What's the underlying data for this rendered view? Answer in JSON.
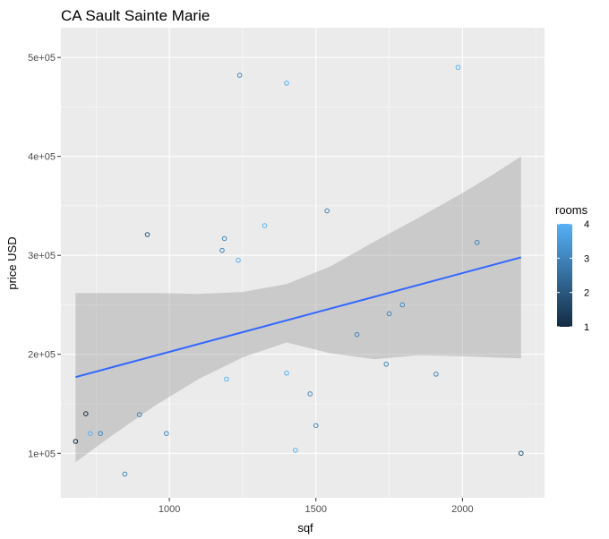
{
  "chart_data": {
    "type": "scatter",
    "title": "CA Sault Sainte Marie",
    "xlabel": "sqf",
    "ylabel": "price USD",
    "xlim": [
      630,
      2280
    ],
    "ylim": [
      55000,
      530000
    ],
    "x_ticks": [
      1000,
      1500,
      2000
    ],
    "x_tick_labels": [
      "1000",
      "1500",
      "2000"
    ],
    "y_ticks": [
      100000,
      200000,
      300000,
      400000,
      500000
    ],
    "y_tick_labels": [
      "1e+05",
      "2e+05",
      "3e+05",
      "4e+05",
      "5e+05"
    ],
    "grid": true,
    "legend": {
      "title": "rooms",
      "placement": "right",
      "min": 1,
      "max": 4,
      "labels": [
        "4",
        "3",
        "2",
        "1"
      ],
      "values": [
        4,
        3,
        2,
        1
      ],
      "color_low": "#132B43",
      "color_high": "#56B1F7"
    },
    "points": [
      {
        "x": 680,
        "y": 112000,
        "rooms": 1
      },
      {
        "x": 715,
        "y": 140000,
        "rooms": 1
      },
      {
        "x": 730,
        "y": 120000,
        "rooms": 4
      },
      {
        "x": 765,
        "y": 120000,
        "rooms": 3
      },
      {
        "x": 848,
        "y": 79000,
        "rooms": 3
      },
      {
        "x": 898,
        "y": 139000,
        "rooms": 3
      },
      {
        "x": 925,
        "y": 321000,
        "rooms": 2
      },
      {
        "x": 990,
        "y": 120000,
        "rooms": 3
      },
      {
        "x": 1180,
        "y": 305000,
        "rooms": 3
      },
      {
        "x": 1188,
        "y": 317000,
        "rooms": 3
      },
      {
        "x": 1195,
        "y": 175000,
        "rooms": 4
      },
      {
        "x": 1235,
        "y": 295000,
        "rooms": 4
      },
      {
        "x": 1240,
        "y": 482000,
        "rooms": 3
      },
      {
        "x": 1325,
        "y": 330000,
        "rooms": 4
      },
      {
        "x": 1400,
        "y": 474000,
        "rooms": 4
      },
      {
        "x": 1400,
        "y": 181000,
        "rooms": 4
      },
      {
        "x": 1430,
        "y": 103000,
        "rooms": 4
      },
      {
        "x": 1480,
        "y": 160000,
        "rooms": 3
      },
      {
        "x": 1500,
        "y": 128000,
        "rooms": 3
      },
      {
        "x": 1538,
        "y": 345000,
        "rooms": 3
      },
      {
        "x": 1640,
        "y": 220000,
        "rooms": 3
      },
      {
        "x": 1740,
        "y": 190000,
        "rooms": 3
      },
      {
        "x": 1750,
        "y": 241000,
        "rooms": 3
      },
      {
        "x": 1795,
        "y": 250000,
        "rooms": 3
      },
      {
        "x": 1910,
        "y": 180000,
        "rooms": 3
      },
      {
        "x": 1985,
        "y": 490000,
        "rooms": 4
      },
      {
        "x": 2050,
        "y": 313000,
        "rooms": 3
      },
      {
        "x": 2200,
        "y": 100000,
        "rooms": 2
      }
    ],
    "smooth": {
      "method": "lm",
      "x": [
        680,
        2200
      ],
      "y": [
        177000,
        298000
      ],
      "band_x": [
        680,
        800,
        950,
        1100,
        1250,
        1400,
        1550,
        1700,
        1850,
        2000,
        2100,
        2200
      ],
      "band_upper": [
        262000,
        262000,
        262000,
        261000,
        263000,
        271000,
        289000,
        314000,
        338000,
        363000,
        381000,
        400000
      ],
      "band_lower": [
        91000,
        117000,
        148000,
        175000,
        197000,
        212000,
        201000,
        195000,
        199000,
        198000,
        197000,
        196000
      ]
    },
    "colors": {
      "panel": "#EBEBEB",
      "grid": "#FFFFFF",
      "line": "#3366FF",
      "band": "#999999"
    }
  }
}
